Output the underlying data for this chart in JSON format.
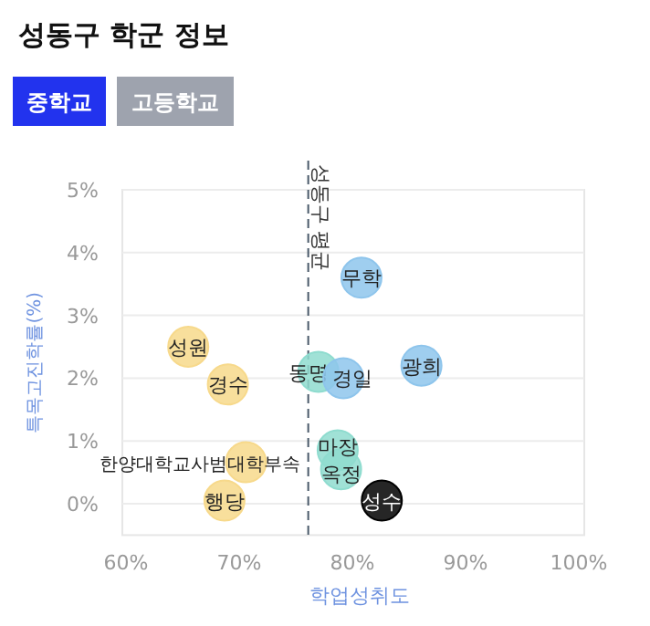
{
  "chart_data": {
    "type": "scatter",
    "title": "성동구 학군 정보",
    "annotations": [
      "중학교",
      "고등학교"
    ],
    "xlabel": "학업성취도",
    "ylabel": "특목고진학률(%)",
    "xlim": [
      60,
      100
    ],
    "ylim": [
      -0.5,
      5
    ],
    "xticks": [
      {
        "value": 60,
        "label": "60%"
      },
      {
        "value": 70,
        "label": "70%"
      },
      {
        "value": 80,
        "label": "80%"
      },
      {
        "value": 90,
        "label": "90%"
      },
      {
        "value": 100,
        "label": "100%"
      }
    ],
    "yticks": [
      {
        "value": 0,
        "label": "0%"
      },
      {
        "value": 1,
        "label": "1%"
      },
      {
        "value": 2,
        "label": "2%"
      },
      {
        "value": 3,
        "label": "3%"
      },
      {
        "value": 4,
        "label": "4%"
      },
      {
        "value": 5,
        "label": "5%"
      }
    ],
    "grid": "y",
    "marker": "circle",
    "series": [
      {
        "color": "#f7d98b",
        "x": [
          65.5,
          69,
          70.6,
          68.7
        ],
        "values": [
          2.5,
          1.9,
          0.66,
          0.05
        ],
        "value_labels": [
          "성원",
          "경수",
          "한양대학교사범대학부속",
          "행당"
        ]
      },
      {
        "color": "#8fdccf",
        "x": [
          77,
          78.7,
          79
        ],
        "values": [
          2.1,
          0.85,
          0.55
        ],
        "value_labels": [
          "동명",
          "마장",
          "옥정"
        ]
      },
      {
        "color": "#8ec5ec",
        "x": [
          79.2,
          80.8,
          86.1
        ],
        "values": [
          2.0,
          3.6,
          2.2
        ],
        "value_labels": [
          "경일",
          "무학",
          "광희"
        ]
      },
      {
        "color": "#000000",
        "x": [
          82.6
        ],
        "values": [
          0.05
        ],
        "value_labels": [
          "성수"
        ]
      }
    ],
    "ref_lines": [
      {
        "axis": "x",
        "value": 76.1,
        "label": "성동구 평균",
        "line_style": "dashed",
        "color": "#4a5a6a"
      }
    ]
  }
}
